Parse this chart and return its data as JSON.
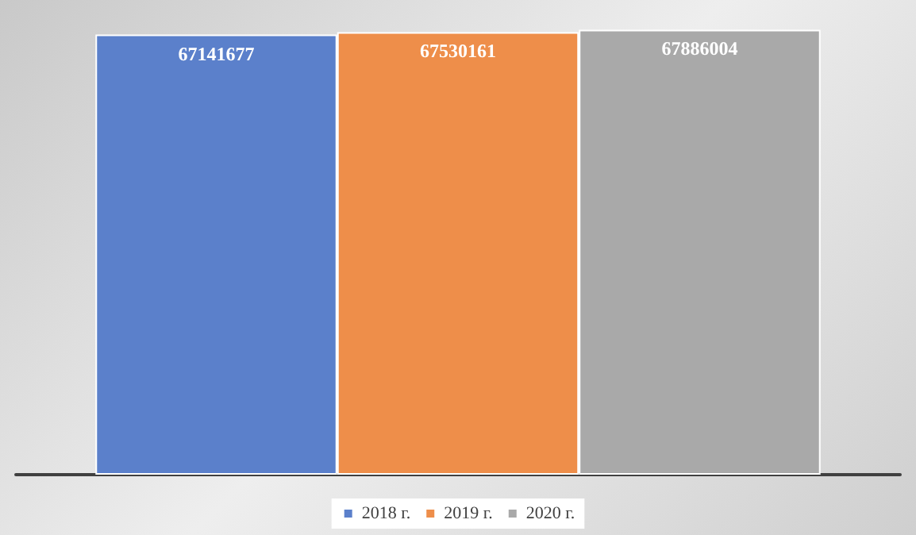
{
  "chart_data": {
    "type": "bar",
    "categories": [
      null
    ],
    "series": [
      {
        "name": "2018 г.",
        "color": "#5b80cb",
        "values": [
          67141677
        ]
      },
      {
        "name": "2019 г.",
        "color": "#ee8e4a",
        "values": [
          67530161
        ]
      },
      {
        "name": "2020 г.",
        "color": "#a9a9a9",
        "values": [
          67886004
        ]
      }
    ],
    "data_labels": true,
    "legend": "bottom",
    "tick_labels": false,
    "grid": false
  }
}
